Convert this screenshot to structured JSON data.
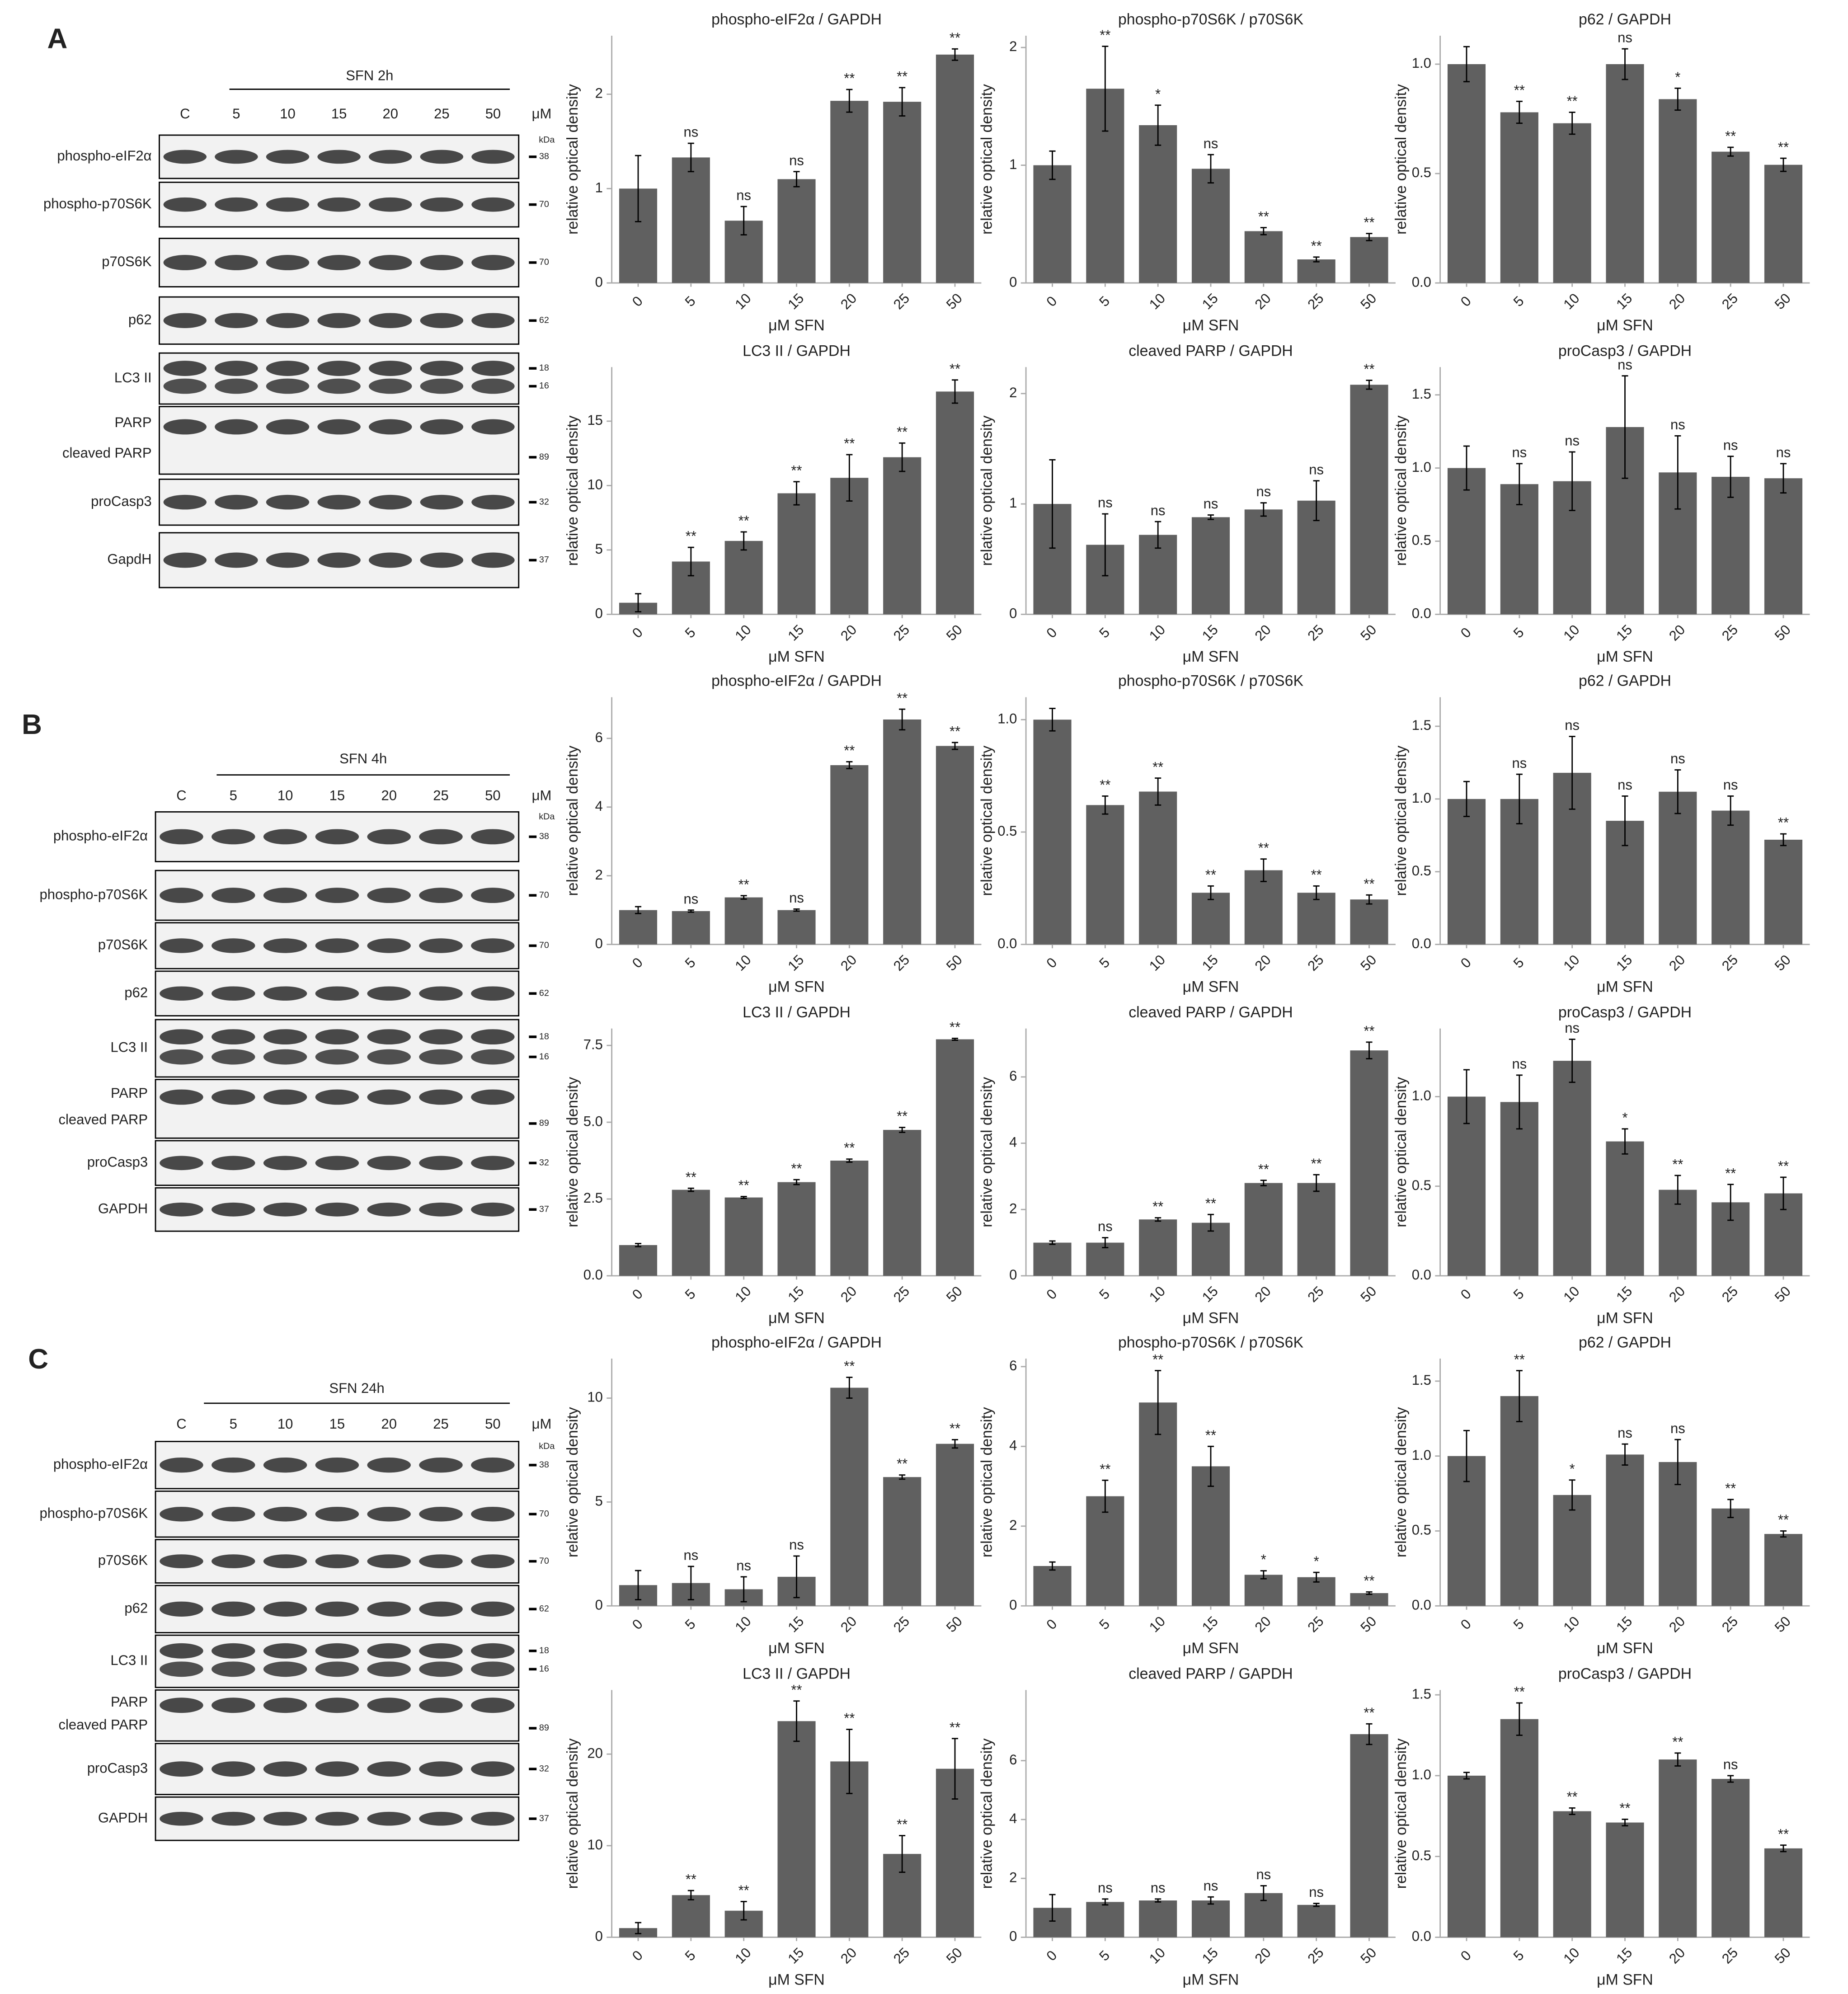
{
  "panels": [
    {
      "label": "A",
      "treatment": "SFN 2h",
      "unit": "μM",
      "lanes": [
        "C",
        "5",
        "10",
        "15",
        "20",
        "25",
        "50"
      ],
      "kda": "kDa",
      "rows": [
        {
          "names": [
            "phospho-eIF2α"
          ],
          "markers": [
            "38"
          ]
        },
        {
          "names": [
            "phospho-p70S6K"
          ],
          "markers": [
            "70"
          ]
        },
        {
          "names": [
            "p70S6K"
          ],
          "markers": [
            "70"
          ]
        },
        {
          "names": [
            "p62"
          ],
          "markers": [
            "62"
          ]
        },
        {
          "names": [
            "LC3 II"
          ],
          "markers": [
            "18",
            "16"
          ]
        },
        {
          "names": [
            "PARP",
            "cleaved PARP"
          ],
          "markers": [
            "89"
          ]
        },
        {
          "names": [
            "proCasp3"
          ],
          "markers": [
            "32"
          ]
        },
        {
          "names": [
            "GapdH"
          ],
          "markers": [
            "37"
          ]
        }
      ]
    },
    {
      "label": "B",
      "treatment": "SFN 4h",
      "unit": "μM",
      "lanes": [
        "C",
        "5",
        "10",
        "15",
        "20",
        "25",
        "50"
      ],
      "kda": "kDa",
      "rows": [
        {
          "names": [
            "phospho-eIF2α"
          ],
          "markers": [
            "38"
          ]
        },
        {
          "names": [
            "phospho-p70S6K"
          ],
          "markers": [
            "70"
          ]
        },
        {
          "names": [
            "p70S6K"
          ],
          "markers": [
            "70"
          ]
        },
        {
          "names": [
            "p62"
          ],
          "markers": [
            "62"
          ]
        },
        {
          "names": [
            "LC3 II"
          ],
          "markers": [
            "18",
            "16"
          ]
        },
        {
          "names": [
            "PARP",
            "cleaved PARP"
          ],
          "markers": [
            "89"
          ]
        },
        {
          "names": [
            "proCasp3"
          ],
          "markers": [
            "32"
          ]
        },
        {
          "names": [
            "GAPDH"
          ],
          "markers": [
            "37"
          ]
        }
      ]
    },
    {
      "label": "C",
      "treatment": "SFN 24h",
      "unit": "μM",
      "lanes": [
        "C",
        "5",
        "10",
        "15",
        "20",
        "25",
        "50"
      ],
      "kda": "kDa",
      "rows": [
        {
          "names": [
            "phospho-eIF2α"
          ],
          "markers": [
            "38"
          ]
        },
        {
          "names": [
            "phospho-p70S6K"
          ],
          "markers": [
            "70"
          ]
        },
        {
          "names": [
            "p70S6K"
          ],
          "markers": [
            "70"
          ]
        },
        {
          "names": [
            "p62"
          ],
          "markers": [
            "62"
          ]
        },
        {
          "names": [
            "LC3 II"
          ],
          "markers": [
            "18",
            "16"
          ]
        },
        {
          "names": [
            "PARP",
            "cleaved PARP"
          ],
          "markers": [
            "89"
          ]
        },
        {
          "names": [
            "proCasp3"
          ],
          "markers": [
            "32"
          ]
        },
        {
          "names": [
            "GAPDH"
          ],
          "markers": [
            "37"
          ]
        }
      ]
    }
  ],
  "chart_data": [
    {
      "type": "bar",
      "title": "phospho-eIF2α / GAPDH",
      "xlabel": "μM SFN",
      "ylabel": "relative optical density",
      "categories": [
        "0",
        "5",
        "10",
        "15",
        "20",
        "25",
        "50"
      ],
      "values": [
        1.0,
        1.33,
        0.66,
        1.1,
        1.93,
        1.92,
        2.42
      ],
      "errors": [
        0.35,
        0.15,
        0.15,
        0.08,
        0.12,
        0.15,
        0.06
      ],
      "annotations": [
        null,
        "ns",
        "ns",
        "ns",
        "**",
        "**",
        "**"
      ],
      "color": "#606060",
      "ylim": [
        0,
        2.62
      ],
      "yticks": [
        0,
        1,
        2
      ]
    },
    {
      "type": "bar",
      "title": "phospho-p70S6K / p70S6K",
      "xlabel": "μM SFN",
      "ylabel": "relative optical density",
      "categories": [
        "0",
        "5",
        "10",
        "15",
        "20",
        "25",
        "50"
      ],
      "values": [
        1.0,
        1.65,
        1.34,
        0.97,
        0.44,
        0.2,
        0.39
      ],
      "errors": [
        0.12,
        0.36,
        0.17,
        0.12,
        0.03,
        0.02,
        0.03
      ],
      "annotations": [
        null,
        "**",
        "*",
        "ns",
        "**",
        "**",
        "**"
      ],
      "color": "#606060",
      "ylim": [
        0,
        2.1
      ],
      "yticks": [
        0,
        1,
        2
      ]
    },
    {
      "type": "bar",
      "title": "p62 / GAPDH",
      "xlabel": "μM SFN",
      "ylabel": "relative optical density",
      "categories": [
        "0",
        "5",
        "10",
        "15",
        "20",
        "25",
        "50"
      ],
      "values": [
        1.0,
        0.78,
        0.73,
        1.0,
        0.84,
        0.6,
        0.54
      ],
      "errors": [
        0.08,
        0.05,
        0.05,
        0.07,
        0.05,
        0.02,
        0.03
      ],
      "annotations": [
        null,
        "**",
        "**",
        "ns",
        "*",
        "**",
        "**"
      ],
      "color": "#606060",
      "ylim": [
        0,
        1.13
      ],
      "yticks": [
        {
          "value": 0,
          "label": "0.0"
        },
        0.5,
        {
          "value": 1,
          "label": "1.0"
        }
      ]
    },
    {
      "type": "bar",
      "title": "LC3 II / GAPDH",
      "xlabel": "μM SFN",
      "ylabel": "relative optical density",
      "categories": [
        "0",
        "5",
        "10",
        "15",
        "20",
        "25",
        "50"
      ],
      "values": [
        0.9,
        4.1,
        5.7,
        9.4,
        10.6,
        12.2,
        17.3
      ],
      "errors": [
        0.7,
        1.1,
        0.7,
        0.9,
        1.8,
        1.1,
        0.9
      ],
      "annotations": [
        null,
        "**",
        "**",
        "**",
        "**",
        "**",
        "**"
      ],
      "color": "#606060",
      "ylim": [
        0,
        19.2
      ],
      "yticks": [
        0,
        5,
        10,
        15
      ]
    },
    {
      "type": "bar",
      "title": "cleaved PARP / GAPDH",
      "xlabel": "μM SFN",
      "ylabel": "relative optical density",
      "categories": [
        "0",
        "5",
        "10",
        "15",
        "20",
        "25",
        "50"
      ],
      "values": [
        1.0,
        0.63,
        0.72,
        0.88,
        0.95,
        1.03,
        2.08
      ],
      "errors": [
        0.4,
        0.28,
        0.12,
        0.02,
        0.06,
        0.18,
        0.04
      ],
      "annotations": [
        null,
        "ns",
        "ns",
        "ns",
        "ns",
        "ns",
        "**"
      ],
      "color": "#606060",
      "ylim": [
        0,
        2.24
      ],
      "yticks": [
        0,
        1,
        2
      ]
    },
    {
      "type": "bar",
      "title": "proCasp3 / GAPDH",
      "xlabel": "μM SFN",
      "ylabel": "relative optical density",
      "categories": [
        "0",
        "5",
        "10",
        "15",
        "20",
        "25",
        "50"
      ],
      "values": [
        1.0,
        0.89,
        0.91,
        1.28,
        0.97,
        0.94,
        0.93
      ],
      "errors": [
        0.15,
        0.14,
        0.2,
        0.35,
        0.25,
        0.14,
        0.1
      ],
      "annotations": [
        null,
        "ns",
        "ns",
        "ns",
        "ns",
        "ns",
        "ns"
      ],
      "color": "#606060",
      "ylim": [
        0,
        1.69
      ],
      "yticks": [
        {
          "value": 0,
          "label": "0.0"
        },
        0.5,
        {
          "value": 1,
          "label": "1.0"
        },
        1.5
      ]
    },
    {
      "type": "bar",
      "title": "phospho-eIF2α / GAPDH",
      "xlabel": "μM SFN",
      "ylabel": "relative optical density",
      "categories": [
        "0",
        "5",
        "10",
        "15",
        "20",
        "25",
        "50"
      ],
      "values": [
        1.0,
        0.97,
        1.37,
        1.0,
        5.22,
        6.55,
        5.78
      ],
      "errors": [
        0.1,
        0.03,
        0.05,
        0.03,
        0.1,
        0.3,
        0.1
      ],
      "annotations": [
        null,
        "ns",
        "**",
        "ns",
        "**",
        "**",
        "**"
      ],
      "color": "#606060",
      "ylim": [
        0,
        7.2
      ],
      "yticks": [
        0,
        2,
        4,
        6
      ]
    },
    {
      "type": "bar",
      "title": "phospho-p70S6K / p70S6K",
      "xlabel": "μM SFN",
      "ylabel": "relative optical density",
      "categories": [
        "0",
        "5",
        "10",
        "15",
        "20",
        "25",
        "50"
      ],
      "values": [
        1.0,
        0.62,
        0.68,
        0.23,
        0.33,
        0.23,
        0.2
      ],
      "errors": [
        0.05,
        0.04,
        0.06,
        0.03,
        0.05,
        0.03,
        0.02
      ],
      "annotations": [
        null,
        "**",
        "**",
        "**",
        "**",
        "**",
        "**"
      ],
      "color": "#606060",
      "ylim": [
        0,
        1.1
      ],
      "yticks": [
        {
          "value": 0,
          "label": "0.0"
        },
        0.5,
        {
          "value": 1,
          "label": "1.0"
        }
      ]
    },
    {
      "type": "bar",
      "title": "p62 / GAPDH",
      "xlabel": "μM SFN",
      "ylabel": "relative optical density",
      "categories": [
        "0",
        "5",
        "10",
        "15",
        "20",
        "25",
        "50"
      ],
      "values": [
        1.0,
        1.0,
        1.18,
        0.85,
        1.05,
        0.92,
        0.72
      ],
      "errors": [
        0.12,
        0.17,
        0.25,
        0.17,
        0.15,
        0.1,
        0.04
      ],
      "annotations": [
        null,
        "ns",
        "ns",
        "ns",
        "ns",
        "ns",
        "**"
      ],
      "color": "#606060",
      "ylim": [
        0,
        1.7
      ],
      "yticks": [
        {
          "value": 0,
          "label": "0.0"
        },
        0.5,
        {
          "value": 1,
          "label": "1.0"
        },
        1.5
      ]
    },
    {
      "type": "bar",
      "title": "LC3 II / GAPDH",
      "xlabel": "μM SFN",
      "ylabel": "relative optical density",
      "categories": [
        "0",
        "5",
        "10",
        "15",
        "20",
        "25",
        "50"
      ],
      "values": [
        1.0,
        2.8,
        2.55,
        3.05,
        3.75,
        4.75,
        7.7
      ],
      "errors": [
        0.05,
        0.05,
        0.03,
        0.08,
        0.05,
        0.08,
        0.03
      ],
      "annotations": [
        null,
        "**",
        "**",
        "**",
        "**",
        "**",
        "**"
      ],
      "color": "#606060",
      "ylim": [
        0,
        8.05
      ],
      "yticks": [
        {
          "value": 0,
          "label": "0.0"
        },
        2.5,
        {
          "value": 5,
          "label": "5.0"
        },
        7.5
      ]
    },
    {
      "type": "bar",
      "title": "cleaved PARP / GAPDH",
      "xlabel": "μM SFN",
      "ylabel": "relative optical density",
      "categories": [
        "0",
        "5",
        "10",
        "15",
        "20",
        "25",
        "50"
      ],
      "values": [
        1.0,
        1.0,
        1.7,
        1.6,
        2.8,
        2.8,
        6.8
      ],
      "errors": [
        0.05,
        0.15,
        0.05,
        0.25,
        0.08,
        0.25,
        0.25
      ],
      "annotations": [
        null,
        "ns",
        "**",
        "**",
        "**",
        "**",
        "**"
      ],
      "color": "#606060",
      "ylim": [
        0,
        7.46
      ],
      "yticks": [
        0,
        2,
        4,
        6
      ]
    },
    {
      "type": "bar",
      "title": "proCasp3 / GAPDH",
      "xlabel": "μM SFN",
      "ylabel": "relative optical density",
      "categories": [
        "0",
        "5",
        "10",
        "15",
        "20",
        "25",
        "50"
      ],
      "values": [
        1.0,
        0.97,
        1.2,
        0.75,
        0.48,
        0.41,
        0.46
      ],
      "errors": [
        0.15,
        0.15,
        0.12,
        0.07,
        0.08,
        0.1,
        0.09
      ],
      "annotations": [
        null,
        "ns",
        "ns",
        "*",
        "**",
        "**",
        "**"
      ],
      "color": "#606060",
      "ylim": [
        0,
        1.38
      ],
      "yticks": [
        {
          "value": 0,
          "label": "0.0"
        },
        0.5,
        {
          "value": 1,
          "label": "1.0"
        }
      ]
    },
    {
      "type": "bar",
      "title": "phospho-eIF2α / GAPDH",
      "xlabel": "μM SFN",
      "ylabel": "relative optical density",
      "categories": [
        "0",
        "5",
        "10",
        "15",
        "20",
        "25",
        "50"
      ],
      "values": [
        1.0,
        1.1,
        0.8,
        1.4,
        10.5,
        6.2,
        7.8
      ],
      "errors": [
        0.7,
        0.8,
        0.6,
        1.0,
        0.5,
        0.1,
        0.2
      ],
      "annotations": [
        null,
        "ns",
        "ns",
        "ns",
        "**",
        "**",
        "**"
      ],
      "color": "#606060",
      "ylim": [
        0,
        11.9
      ],
      "yticks": [
        0,
        5,
        10
      ]
    },
    {
      "type": "bar",
      "title": "phospho-p70S6K / p70S6K",
      "xlabel": "μM SFN",
      "ylabel": "relative optical density",
      "categories": [
        "0",
        "5",
        "10",
        "15",
        "20",
        "25",
        "50"
      ],
      "values": [
        1.0,
        2.75,
        5.1,
        3.5,
        0.78,
        0.72,
        0.32
      ],
      "errors": [
        0.1,
        0.4,
        0.8,
        0.5,
        0.1,
        0.12,
        0.03
      ],
      "annotations": [
        null,
        "**",
        "**",
        "**",
        "*",
        "*",
        "**"
      ],
      "color": "#606060",
      "ylim": [
        0,
        6.2
      ],
      "yticks": [
        0,
        2,
        4,
        6
      ]
    },
    {
      "type": "bar",
      "title": "p62 / GAPDH",
      "xlabel": "μM SFN",
      "ylabel": "relative optical density",
      "categories": [
        "0",
        "5",
        "10",
        "15",
        "20",
        "25",
        "50"
      ],
      "values": [
        1.0,
        1.4,
        0.74,
        1.01,
        0.96,
        0.65,
        0.48
      ],
      "errors": [
        0.17,
        0.17,
        0.1,
        0.07,
        0.15,
        0.06,
        0.02
      ],
      "annotations": [
        null,
        "**",
        "*",
        "ns",
        "ns",
        "**",
        "**"
      ],
      "color": "#606060",
      "ylim": [
        0,
        1.65
      ],
      "yticks": [
        {
          "value": 0,
          "label": "0.0"
        },
        0.5,
        {
          "value": 1,
          "label": "1.0"
        },
        1.5
      ]
    },
    {
      "type": "bar",
      "title": "LC3 II / GAPDH",
      "xlabel": "μM SFN",
      "ylabel": "relative optical density",
      "categories": [
        "0",
        "5",
        "10",
        "15",
        "20",
        "25",
        "50"
      ],
      "values": [
        1.0,
        4.6,
        2.9,
        23.6,
        19.2,
        9.1,
        18.4
      ],
      "errors": [
        0.6,
        0.5,
        1.0,
        2.2,
        3.5,
        2.0,
        3.3
      ],
      "annotations": [
        null,
        "**",
        "**",
        "**",
        "**",
        "**",
        "**"
      ],
      "color": "#606060",
      "ylim": [
        0,
        27
      ],
      "yticks": [
        0,
        10,
        20
      ]
    },
    {
      "type": "bar",
      "title": "cleaved PARP / GAPDH",
      "xlabel": "μM SFN",
      "ylabel": "relative optical density",
      "categories": [
        "0",
        "5",
        "10",
        "15",
        "20",
        "25",
        "50"
      ],
      "values": [
        1.0,
        1.2,
        1.25,
        1.25,
        1.5,
        1.1,
        6.9
      ],
      "errors": [
        0.45,
        0.1,
        0.05,
        0.12,
        0.25,
        0.05,
        0.35
      ],
      "annotations": [
        null,
        "ns",
        "ns",
        "ns",
        "ns",
        "ns",
        "**"
      ],
      "color": "#606060",
      "ylim": [
        0,
        8.4
      ],
      "yticks": [
        0,
        2,
        4,
        6
      ]
    },
    {
      "type": "bar",
      "title": "proCasp3 / GAPDH",
      "xlabel": "μM SFN",
      "ylabel": "relative optical density",
      "categories": [
        "0",
        "5",
        "10",
        "15",
        "20",
        "25",
        "50"
      ],
      "values": [
        1.0,
        1.35,
        0.78,
        0.71,
        1.1,
        0.98,
        0.55
      ],
      "errors": [
        0.02,
        0.1,
        0.02,
        0.02,
        0.04,
        0.02,
        0.02
      ],
      "annotations": [
        null,
        "**",
        "**",
        "**",
        "**",
        "ns",
        "**"
      ],
      "color": "#606060",
      "ylim": [
        0,
        1.53
      ],
      "yticks": [
        {
          "value": 0,
          "label": "0.0"
        },
        0.5,
        {
          "value": 1,
          "label": "1.0"
        },
        1.5
      ]
    }
  ]
}
